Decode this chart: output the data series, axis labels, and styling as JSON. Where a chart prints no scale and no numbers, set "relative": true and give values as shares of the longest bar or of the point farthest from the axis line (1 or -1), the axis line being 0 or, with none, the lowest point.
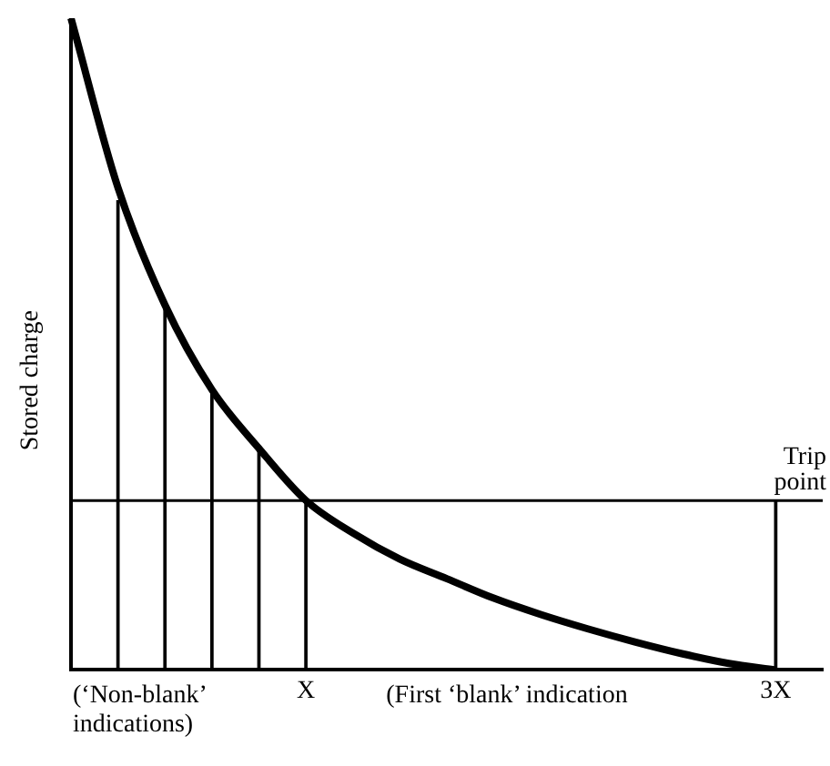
{
  "chart_data": {
    "type": "line",
    "relative": true,
    "ylabel": "Stored charge",
    "marker": "none",
    "grid": false,
    "tick_labels": "x",
    "categories": [
      null,
      null,
      null,
      null,
      null,
      "X",
      null,
      null,
      null,
      null,
      null,
      null,
      null,
      null,
      null,
      "3X",
      null
    ],
    "annotations": [
      "(‘Non-blank’ indications)",
      "(First ‘blank’ indication"
    ],
    "ref_lines": [
      {
        "axis": "y",
        "value": 0.26,
        "label": "Trip point",
        "color": "#000000"
      }
    ],
    "series": [
      {
        "color": "#000000",
        "values": [
          1,
          0.74,
          0.56,
          0.43,
          0.34,
          0.26,
          0.21,
          0.17,
          0.14,
          0.11,
          0.085,
          0.063,
          0.043,
          0.025,
          0.01,
          0,
          null
        ]
      },
      {
        "type": "bar",
        "color": "#000000",
        "values": [
          null,
          0.72,
          0.56,
          0.43,
          0.34,
          0.26,
          null,
          null,
          null,
          null,
          null,
          null,
          null,
          null,
          null,
          0.26,
          null
        ]
      }
    ]
  }
}
